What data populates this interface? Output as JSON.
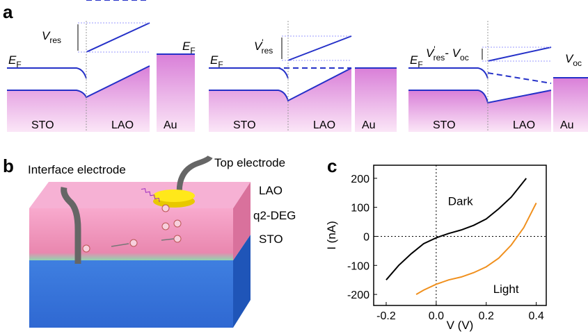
{
  "panel_labels": [
    "a",
    "b",
    "c"
  ],
  "panel_a": {
    "diagrams": [
      {
        "fermi": {
          "main": "E",
          "sub": "F"
        },
        "voltage": {
          "main": "V",
          "sub": "res"
        },
        "regions": [
          "STO",
          "LAO",
          "Au"
        ],
        "metal_fermi": {
          "main": "E",
          "sub": "F"
        }
      },
      {
        "fermi": {
          "main": "E",
          "sub": "F"
        },
        "voltage": {
          "main": "V",
          "sup": "'",
          "sub": "res"
        },
        "regions": [
          "STO",
          "LAO",
          "Au"
        ]
      },
      {
        "fermi": {
          "main": "E",
          "sub": "F"
        },
        "voltage": {
          "main": "V",
          "sup": "'",
          "sub": "res",
          "sep": "- ",
          "main2": "V",
          "sub2": "oc"
        },
        "regions": [
          "STO",
          "LAO",
          "Au"
        ],
        "metal_voltage": {
          "main": "V",
          "sub": "oc"
        }
      }
    ]
  },
  "panel_b": {
    "labels": {
      "interface": "Interface electrode",
      "top": "Top electrode",
      "lao": "LAO",
      "q2deg": "q2-DEG",
      "sto": "STO"
    }
  },
  "chart_data": {
    "type": "line",
    "xlabel": "V (V)",
    "ylabel": "I (nA)",
    "xlim": [
      -0.25,
      0.44
    ],
    "ylim": [
      -238,
      245
    ],
    "xticks": [
      -0.2,
      {
        "value": 0,
        "label": "0.0"
      },
      0.2,
      0.4
    ],
    "yticks": [
      -200,
      -100,
      0,
      100,
      200
    ],
    "series": [
      {
        "name": "Dark",
        "color": "#000000",
        "x": [
          -0.2,
          -0.15,
          -0.1,
          -0.05,
          0,
          0.05,
          0.1,
          0.15,
          0.2,
          0.25,
          0.3,
          0.36
        ],
        "values": [
          -150,
          -100,
          -60,
          -25,
          -5,
          10,
          22,
          38,
          60,
          95,
          135,
          200
        ]
      },
      {
        "name": "Light",
        "color": "#f0901e",
        "x": [
          -0.08,
          -0.05,
          0,
          0.05,
          0.1,
          0.15,
          0.2,
          0.25,
          0.3,
          0.35,
          0.4
        ],
        "values": [
          -200,
          -185,
          -165,
          -150,
          -140,
          -125,
          -105,
          -75,
          -30,
          30,
          115
        ]
      }
    ]
  }
}
